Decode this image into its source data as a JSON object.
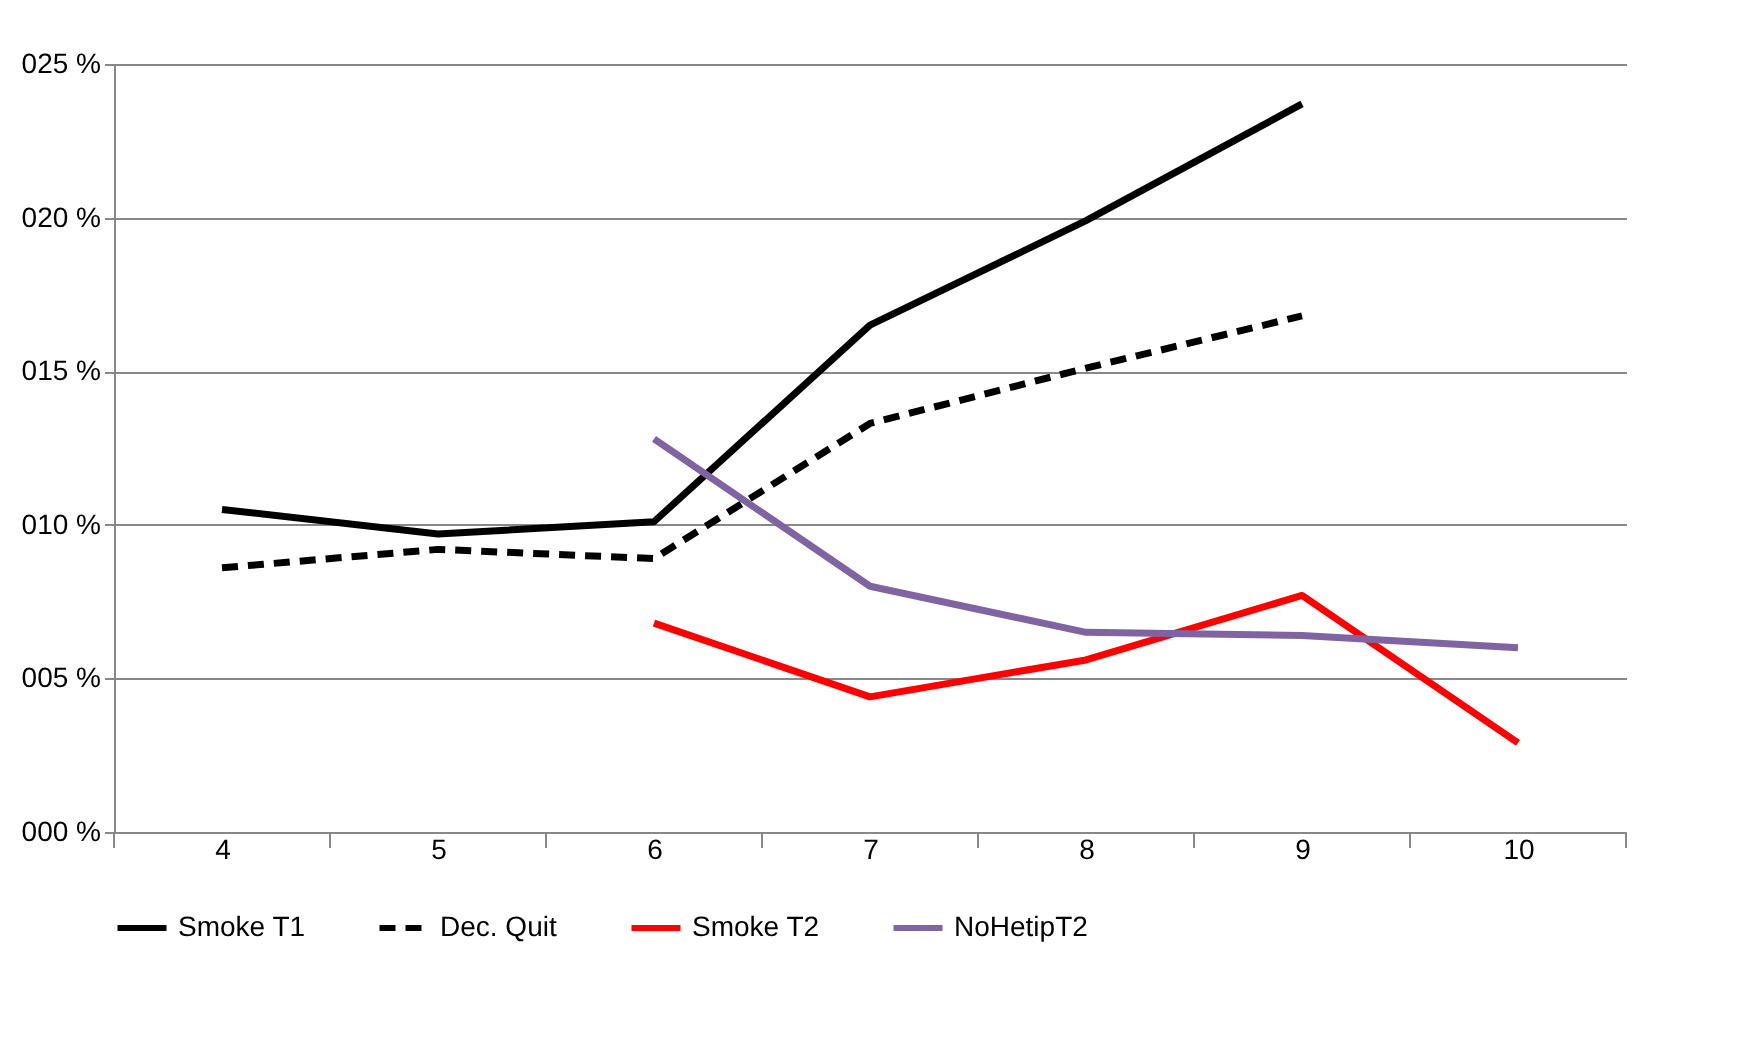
{
  "chart_data": {
    "type": "line",
    "categories": [
      "4",
      "5",
      "6",
      "7",
      "8",
      "9",
      "10"
    ],
    "ylim": [
      0,
      25
    ],
    "yticks": [
      {
        "value": 0,
        "label": "000 %"
      },
      {
        "value": 5,
        "label": "005 %"
      },
      {
        "value": 10,
        "label": "010 %"
      },
      {
        "value": 15,
        "label": "015 %"
      },
      {
        "value": 20,
        "label": "020 %"
      },
      {
        "value": 25,
        "label": "025 %"
      }
    ],
    "grid": "y",
    "legend": "bottom",
    "marker": "none",
    "series": [
      {
        "name": "Smoke T1",
        "color": "#000000",
        "line_style": "solid",
        "values": [
          10.5,
          9.7,
          10.1,
          16.5,
          19.9,
          23.7,
          null
        ]
      },
      {
        "name": "Dec. Quit",
        "color": "#000000",
        "line_style": "dashed",
        "values": [
          8.6,
          9.2,
          8.9,
          13.3,
          15.1,
          16.8,
          null
        ]
      },
      {
        "name": "Smoke T2",
        "color": "#ff0000",
        "line_style": "solid",
        "values": [
          null,
          null,
          6.8,
          4.4,
          5.6,
          7.7,
          2.9
        ]
      },
      {
        "name": "NoHetipT2",
        "color": "#8064a2",
        "line_style": "solid",
        "values": [
          null,
          null,
          12.8,
          8.0,
          6.5,
          6.4,
          6.0
        ]
      }
    ]
  }
}
